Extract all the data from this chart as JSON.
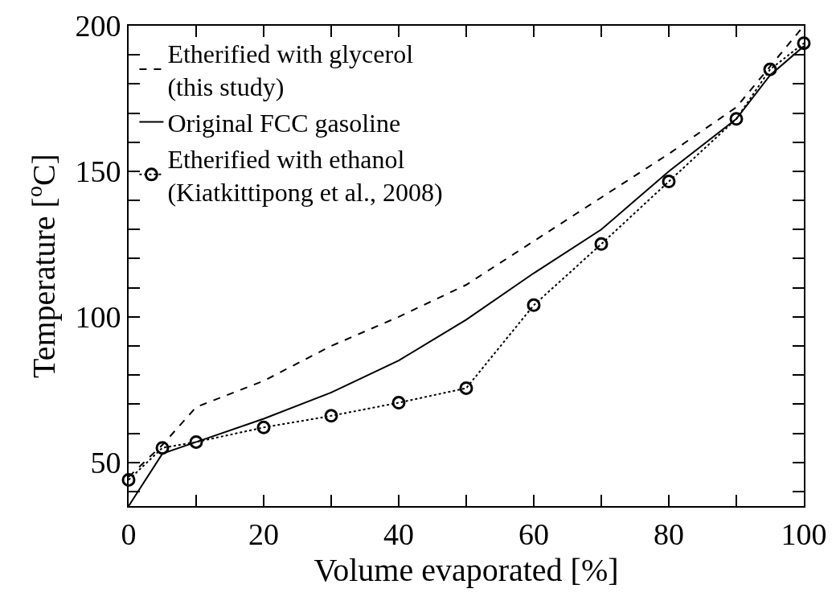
{
  "chart_data": {
    "type": "line",
    "xlabel": "Volume evaporated [%]",
    "ylabel": "Temperature [$^{o}$C]",
    "x": [
      0,
      5,
      10,
      20,
      30,
      40,
      50,
      60,
      70,
      80,
      90,
      95,
      100
    ],
    "series": [
      {
        "name": "Etherified with glycerol\n(this study)",
        "color": "#000000",
        "line_style": "dashed",
        "marker": "none",
        "values": [
          45,
          56,
          69,
          78,
          90,
          100,
          111,
          126,
          141,
          156,
          172,
          186,
          200
        ]
      },
      {
        "name": "Original FCC gasoline",
        "color": "#000000",
        "line_style": "solid",
        "marker": "none",
        "values": [
          35,
          53,
          57,
          65,
          74,
          85,
          99,
          115,
          130,
          150,
          168,
          183,
          193
        ]
      },
      {
        "name": "Etherified with ethanol\n(Kiatkittipong et al., 2008)",
        "color": "#000000",
        "line_style": "dotted",
        "marker": "circle",
        "values": [
          44,
          55,
          57,
          62,
          66,
          70.5,
          75.5,
          104,
          125,
          146.5,
          168,
          185,
          194
        ]
      }
    ],
    "xlim": [
      0,
      100
    ],
    "ylim": [
      35,
      200
    ],
    "xticks": [
      0,
      {
        "value": 10,
        "label": null
      },
      20,
      {
        "value": 30,
        "label": null
      },
      40,
      {
        "value": 50,
        "label": null
      },
      60,
      {
        "value": 70,
        "label": null
      },
      80,
      {
        "value": 90,
        "label": null
      },
      100
    ],
    "yticks": [
      {
        "value": 40,
        "label": null
      },
      50,
      {
        "value": 60,
        "label": null
      },
      {
        "value": 70,
        "label": null
      },
      {
        "value": 80,
        "label": null
      },
      {
        "value": 90,
        "label": null
      },
      100,
      {
        "value": 110,
        "label": null
      },
      {
        "value": 120,
        "label": null
      },
      {
        "value": 130,
        "label": null
      },
      {
        "value": 140,
        "label": null
      },
      150,
      {
        "value": 160,
        "label": null
      },
      {
        "value": 170,
        "label": null
      },
      {
        "value": 180,
        "label": null
      },
      {
        "value": 190,
        "label": null
      },
      200
    ],
    "grid": false,
    "legend": "top left"
  }
}
